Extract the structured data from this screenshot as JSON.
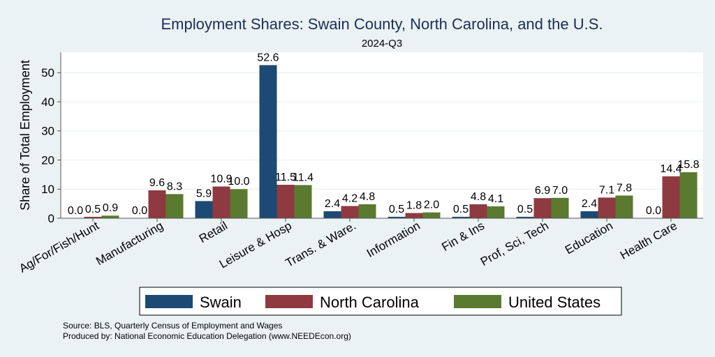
{
  "chart_data": {
    "type": "bar",
    "title": "Employment Shares: Swain County, North Carolina, and the U.S.",
    "subtitle": "2024-Q3",
    "xlabel": "",
    "ylabel": "Share of Total Employment",
    "ylim": [
      0,
      57
    ],
    "yticks": [
      0,
      10,
      20,
      30,
      40,
      50
    ],
    "grid": true,
    "legend_position": "bottom",
    "categories": [
      "Ag/For/Fish/Hunt",
      "Manufacturing",
      "Retail",
      "Leisure & Hosp",
      "Trans. & Ware.",
      "Information",
      "Fin & Ins",
      "Prof, Sci, Tech",
      "Education",
      "Health Care"
    ],
    "series": [
      {
        "name": "Swain",
        "color": "#1c4a74",
        "values": [
          0.0,
          0.0,
          5.9,
          52.6,
          2.4,
          0.5,
          0.5,
          0.5,
          2.4,
          0.0
        ]
      },
      {
        "name": "North Carolina",
        "color": "#8e3a40",
        "values": [
          0.5,
          9.6,
          10.9,
          11.5,
          4.2,
          1.8,
          4.8,
          6.9,
          7.1,
          14.4
        ]
      },
      {
        "name": "United States",
        "color": "#5a7a30",
        "values": [
          0.9,
          8.3,
          10.0,
          11.4,
          4.8,
          2.0,
          4.1,
          7.0,
          7.8,
          15.8
        ]
      }
    ]
  },
  "footer": {
    "source": "Source: BLS, Quarterly Census of Employment and Wages",
    "produced": "Produced by: National Economic Education Delegation (www.NEEDEcon.org)"
  }
}
